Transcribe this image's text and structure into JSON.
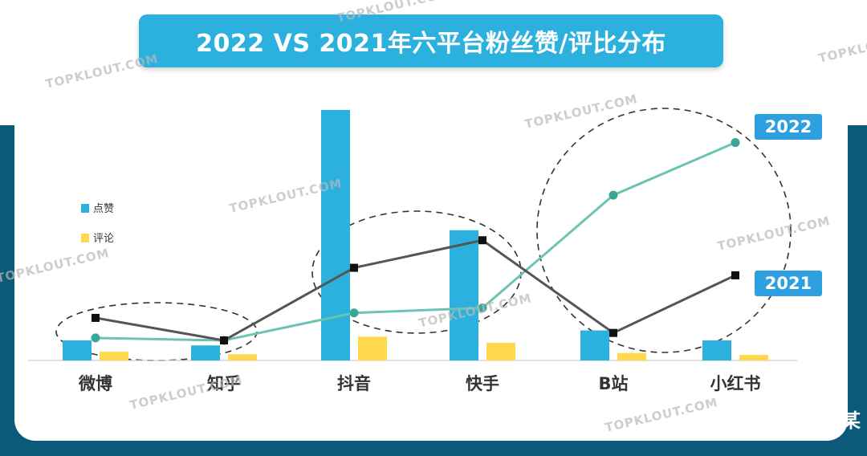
{
  "title": "2022 VS 2021年六平台粉丝赞/评比分布",
  "watermark": "TOPKLOUT.COM",
  "edge_text": "某",
  "colors": {
    "bar_likes": "#2cb1df",
    "bar_comments": "#ffd84d",
    "line_2022": "#6cc3b4",
    "line_2021": "#555555",
    "badge": "#2e9fe0",
    "banner": "#2cb1df",
    "dark_bg": "#0c5a7a"
  },
  "chart_data": {
    "type": "bar+line",
    "title": "2022 VS 2021年六平台粉丝赞/评比分布",
    "categories": [
      "微博",
      "知乎",
      "抖音",
      "快手",
      "B站",
      "小红书"
    ],
    "bar_series": [
      {
        "name": "点赞",
        "values": [
          8,
          6,
          100,
          52,
          12,
          8
        ]
      },
      {
        "name": "评论",
        "values": [
          3.5,
          2.5,
          9.5,
          7,
          3,
          2.2
        ]
      }
    ],
    "line_series": [
      {
        "name": "2022",
        "values": [
          9,
          8,
          19,
          21,
          66,
          87
        ]
      },
      {
        "name": "2021",
        "values": [
          17,
          8,
          37,
          48,
          11,
          34
        ]
      }
    ],
    "ylim": [
      0,
      100
    ],
    "legend": {
      "position": "left",
      "entries": [
        "点赞",
        "评论"
      ]
    },
    "line_labels": [
      "2022",
      "2021"
    ],
    "grid": false
  }
}
